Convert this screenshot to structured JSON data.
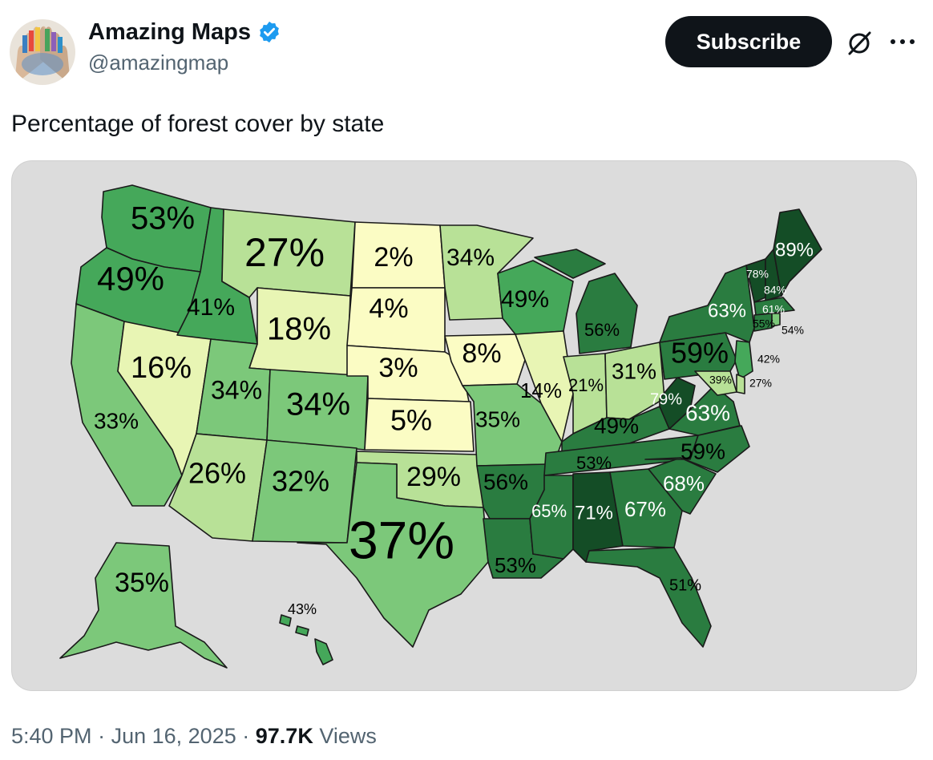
{
  "author": {
    "display_name": "Amazing Maps",
    "handle": "@amazingmap",
    "verified": true
  },
  "actions": {
    "subscribe_label": "Subscribe"
  },
  "tweet": {
    "text": "Percentage of forest cover by state"
  },
  "map": {
    "labels": {
      "wa": "53%",
      "or": "49%",
      "ca": "33%",
      "nv": "16%",
      "id": "41%",
      "mt": "27%",
      "wy": "18%",
      "ut": "34%",
      "az": "26%",
      "co": "34%",
      "nm": "32%",
      "nd": "2%",
      "sd": "4%",
      "ne": "3%",
      "ks": "5%",
      "ok": "29%",
      "tx": "37%",
      "mn": "34%",
      "ia": "8%",
      "mo": "35%",
      "ar": "56%",
      "la": "53%",
      "wi": "49%",
      "il": "14%",
      "mi": "56%",
      "in": "21%",
      "oh": "31%",
      "ky": "49%",
      "tn": "53%",
      "ms": "65%",
      "al": "71%",
      "ga": "67%",
      "fl": "51%",
      "sc": "68%",
      "nc": "59%",
      "va": "63%",
      "wv": "79%",
      "pa": "59%",
      "ny": "63%",
      "vt": "78%",
      "nh": "84%",
      "me": "89%",
      "ma": "61%",
      "ct": "55%",
      "ri": "54%",
      "nj": "42%",
      "md": "39%",
      "de": "27%",
      "ak": "35%",
      "hi": "43%"
    },
    "colors": {
      "very_low": "#fbfcc4",
      "low": "#e8f5b4",
      "low_mid": "#b8e197",
      "mid": "#7cc87a",
      "mid_high": "#45a85a",
      "high": "#2a7c40",
      "very_high": "#144d26",
      "background": "#dcdcdc"
    }
  },
  "meta": {
    "time": "5:40 PM",
    "sep1": "·",
    "date": "Jun 16, 2025",
    "sep2": "·",
    "views_count": "97.7K",
    "views_label": "Views"
  }
}
